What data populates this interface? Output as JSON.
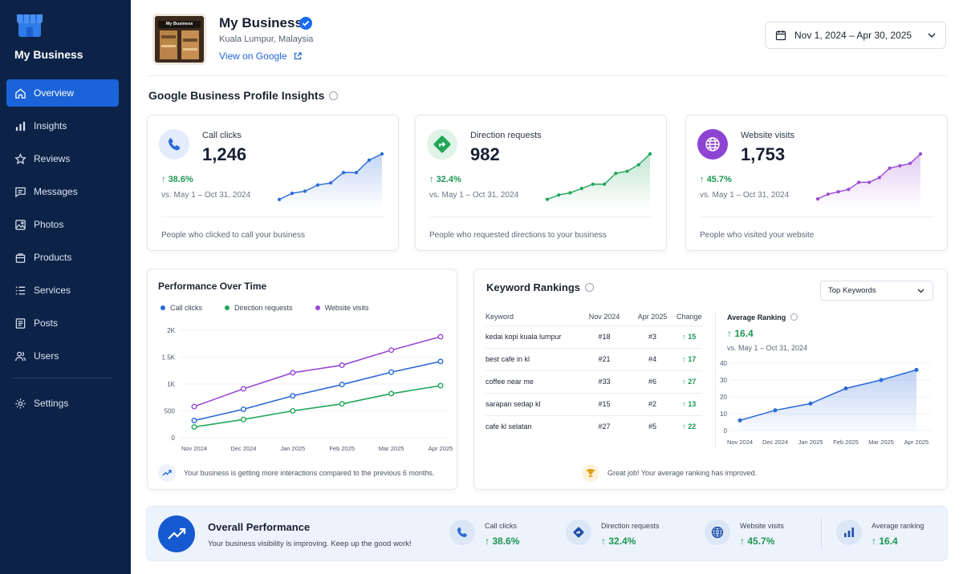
{
  "sidebar": {
    "brand": "My Business",
    "items": [
      {
        "label": "Overview",
        "icon": "home-icon"
      },
      {
        "label": "Insights",
        "icon": "bar-chart-icon"
      },
      {
        "label": "Reviews",
        "icon": "star-icon"
      },
      {
        "label": "Messages",
        "icon": "message-icon"
      },
      {
        "label": "Photos",
        "icon": "image-icon"
      },
      {
        "label": "Products",
        "icon": "bag-icon"
      },
      {
        "label": "Services",
        "icon": "list-icon"
      },
      {
        "label": "Posts",
        "icon": "document-icon"
      },
      {
        "label": "Users",
        "icon": "users-icon"
      }
    ],
    "settings": "Settings"
  },
  "header": {
    "business_name": "My Business",
    "photo_sign": "My Business",
    "location": "Kuala Lumpur, Malaysia",
    "view_link": "View on Google",
    "date_range": "Nov 1, 2024 – Apr 30, 2025"
  },
  "insights": {
    "title": "Google Business Profile Insights",
    "cards": [
      {
        "label": "Call clicks",
        "value": "1,246",
        "change": "38.6%",
        "vs": "vs. May 1 – Oct 31, 2024",
        "desc": "People who clicked to call your business",
        "color": "#2a6ad8",
        "trend": [
          2,
          5,
          6,
          9,
          10,
          15,
          15,
          21,
          24
        ]
      },
      {
        "label": "Direction requests",
        "value": "982",
        "change": "32.4%",
        "vs": "vs. May 1 – Oct 31, 2024",
        "desc": "People who requested directions to your business",
        "color": "#22a65a",
        "trend": [
          2,
          4,
          5,
          7,
          9,
          9,
          14,
          15,
          18,
          23
        ]
      },
      {
        "label": "Website visits",
        "value": "1,753",
        "change": "45.7%",
        "vs": "vs. May 1 – Oct 31, 2024",
        "desc": "People who visited your website",
        "color": "#9a4ad6",
        "trend": [
          2,
          4,
          5,
          6,
          9,
          9,
          11,
          15,
          16,
          17,
          21
        ]
      }
    ]
  },
  "performance": {
    "title": "Performance Over Time",
    "note": "Your business is getting more interactions compared to the previous 6 months.",
    "chart_data": {
      "type": "line",
      "categories": [
        "Nov 2024",
        "Dec 2024",
        "Jan 2025",
        "Feb 2025",
        "Mar 2025",
        "Apr 2025"
      ],
      "yticks": [
        "0",
        "500",
        "1K",
        "1.5K",
        "2K"
      ],
      "ylim": [
        0,
        2000
      ],
      "series": [
        {
          "name": "Call clicks",
          "color": "#2a6ad8",
          "values": [
            320,
            530,
            780,
            990,
            1220,
            1420
          ]
        },
        {
          "name": "Direction requests",
          "color": "#22a65a",
          "values": [
            200,
            340,
            500,
            630,
            820,
            970
          ]
        },
        {
          "name": "Website visits",
          "color": "#9a4ad6",
          "values": [
            580,
            910,
            1210,
            1350,
            1630,
            1880
          ]
        }
      ]
    }
  },
  "keywords": {
    "title": "Keyword Rankings",
    "filter": "Top Keywords",
    "columns": [
      "Keyword",
      "Nov 2024",
      "Apr 2025",
      "Change"
    ],
    "rows": [
      {
        "keyword": "kedai kopi kuala lumpur",
        "nov": "#18",
        "apr": "#3",
        "change": "15"
      },
      {
        "keyword": "best cafe in kl",
        "nov": "#21",
        "apr": "#4",
        "change": "17"
      },
      {
        "keyword": "coffee near me",
        "nov": "#33",
        "apr": "#6",
        "change": "27"
      },
      {
        "keyword": "sarapan sedap kl",
        "nov": "#15",
        "apr": "#2",
        "change": "13"
      },
      {
        "keyword": "cafe kl selatan",
        "nov": "#27",
        "apr": "#5",
        "change": "22"
      }
    ],
    "avg_title": "Average Ranking",
    "avg_value": "16.4",
    "avg_vs": "vs. May 1 – Oct 31, 2024",
    "note": "Great job! Your average ranking has improved.",
    "chart_data": {
      "type": "area",
      "categories": [
        "Nov 2024",
        "Dec 2024",
        "Jan 2025",
        "Feb 2025",
        "Mar 2025",
        "Apr 2025"
      ],
      "yticks": [
        "0",
        "10",
        "20",
        "30",
        "40"
      ],
      "ylim": [
        0,
        40
      ],
      "values": [
        6,
        12,
        16,
        25,
        30,
        36
      ]
    }
  },
  "overall": {
    "title": "Overall Performance",
    "subtitle": "Your business visibility is improving. Keep up the good work!",
    "items": [
      {
        "label": "Call clicks",
        "value": "38.6%"
      },
      {
        "label": "Direction requests",
        "value": "32.4%"
      },
      {
        "label": "Website visits",
        "value": "45.7%"
      },
      {
        "label": "Average ranking",
        "value": "16.4"
      }
    ]
  }
}
